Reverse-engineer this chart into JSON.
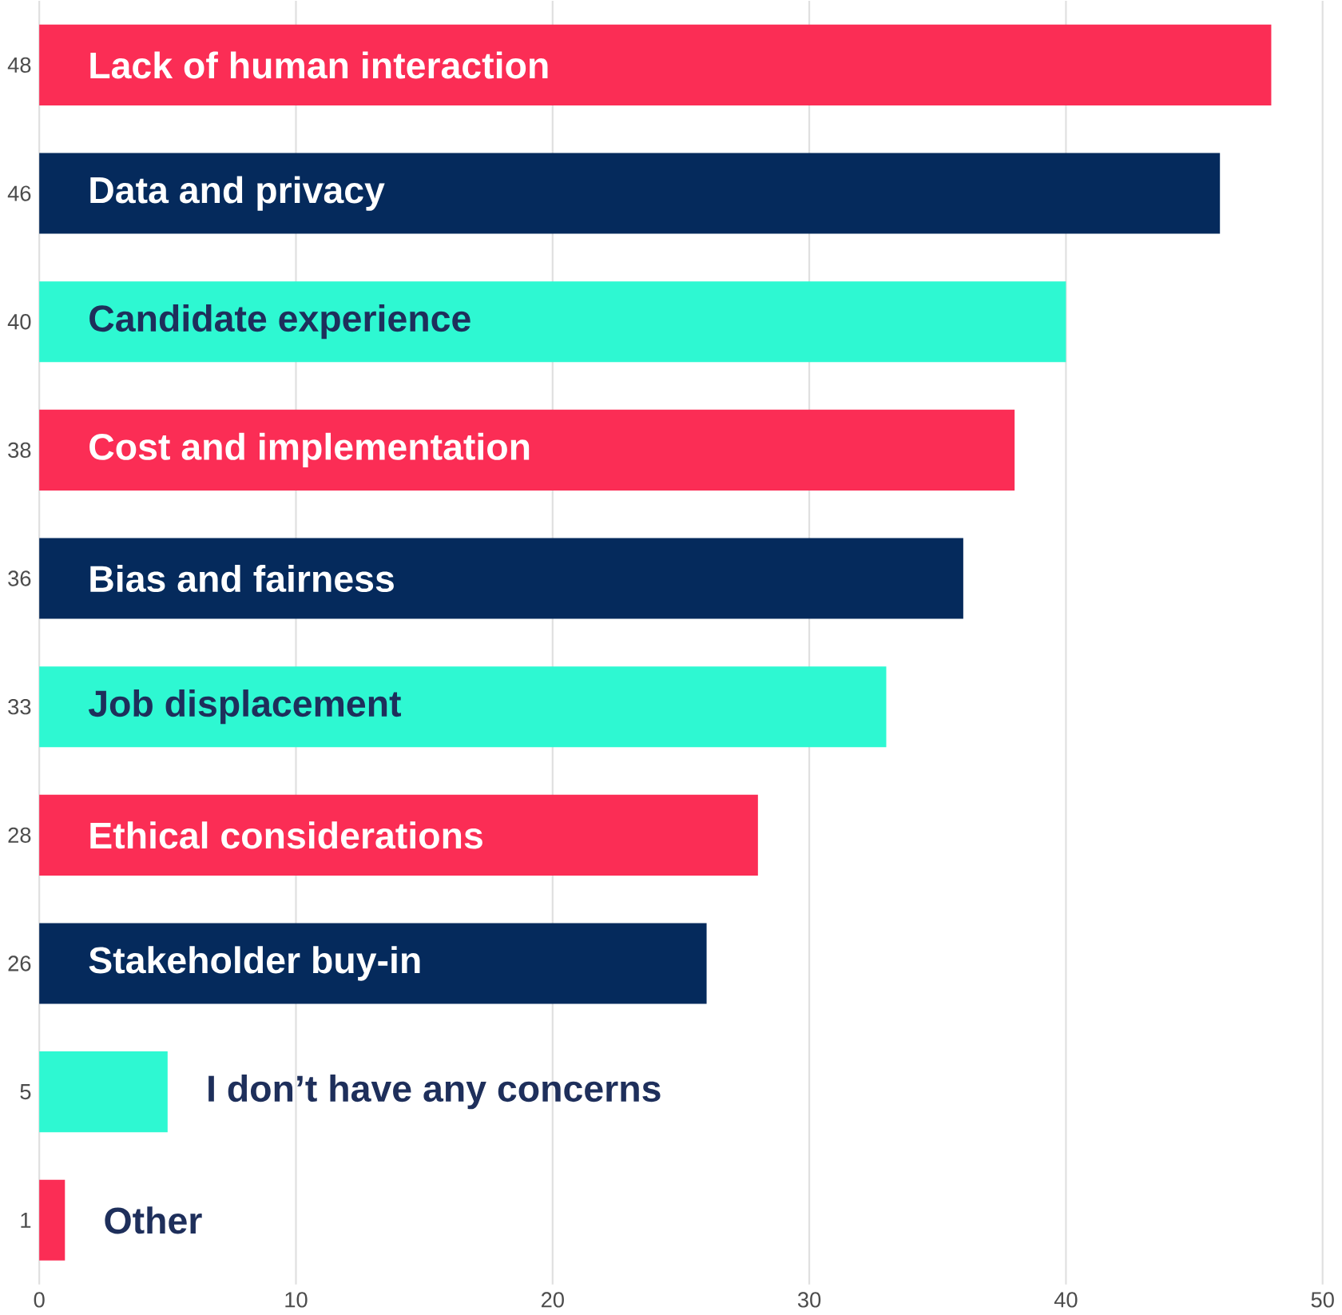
{
  "chart_data": {
    "type": "bar",
    "orientation": "horizontal",
    "categories": [
      "Lack of human interaction",
      "Data and privacy",
      "Candidate experience",
      "Cost and implementation",
      "Bias and fairness",
      "Job displacement",
      "Ethical considerations",
      "Stakeholder buy-in",
      "I don’t have any concerns",
      "Other"
    ],
    "values": [
      48,
      46,
      40,
      38,
      36,
      33,
      28,
      26,
      5,
      1
    ],
    "colors": [
      "#fb2d55",
      "#052a5c",
      "#2ef8d2",
      "#fb2d55",
      "#052a5c",
      "#2ef8d2",
      "#fb2d55",
      "#052a5c",
      "#2ef8d2",
      "#fb2d55"
    ],
    "xlim": [
      0,
      50
    ],
    "xticks": [
      0,
      10,
      20,
      30,
      40,
      50
    ],
    "grid": "x",
    "data_labels": true
  }
}
